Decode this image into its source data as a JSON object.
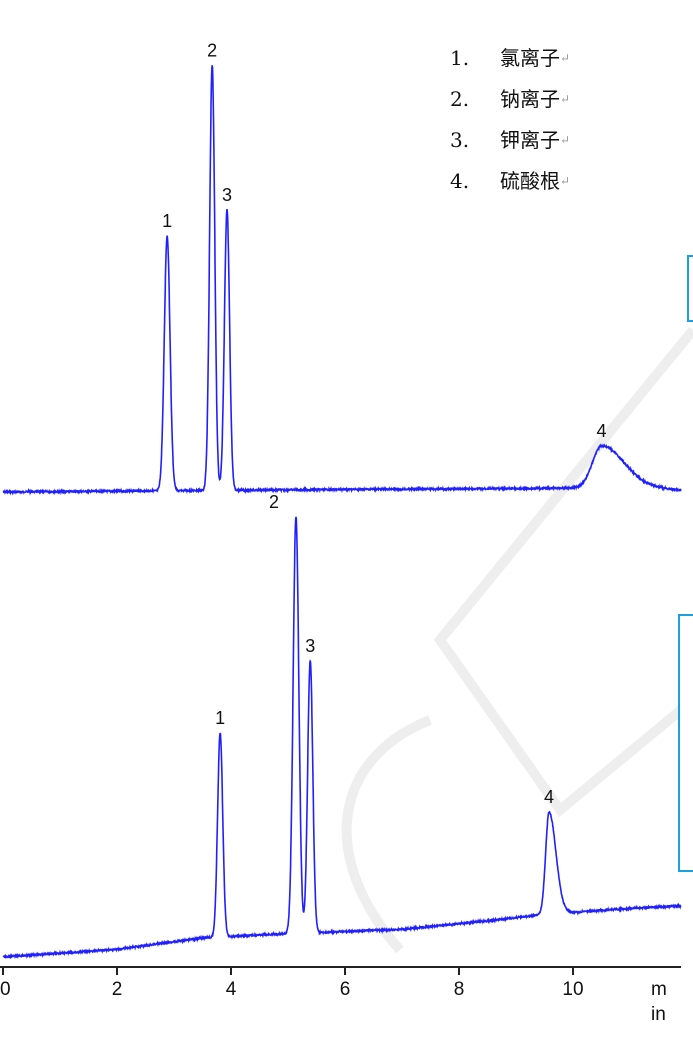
{
  "chart_data": [
    {
      "type": "line",
      "title": "",
      "xlabel": "min",
      "ylabel": "",
      "xlim": [
        0,
        11.8
      ],
      "x_ticks": [
        "0",
        "2",
        "4",
        "6",
        "8",
        "10"
      ],
      "grid": false,
      "color": "#2020ff",
      "baseline": [
        [
          0,
          0
        ],
        [
          3,
          0.3
        ],
        [
          6,
          0.6
        ],
        [
          9,
          0.8
        ],
        [
          10.2,
          1
        ],
        [
          11,
          2
        ],
        [
          11.8,
          0.5
        ]
      ],
      "peaks": [
        {
          "label": "1",
          "rt": 2.88,
          "height": 60,
          "width": 0.05,
          "tail": 1
        },
        {
          "label": "2",
          "rt": 3.67,
          "height": 100,
          "width": 0.045,
          "tail": 1
        },
        {
          "label": "3",
          "rt": 3.93,
          "height": 66,
          "width": 0.045,
          "tail": 1
        },
        {
          "label": "4",
          "rt": 10.5,
          "height": 9.5,
          "width": 0.16,
          "tail": 2.2
        }
      ]
    },
    {
      "type": "line",
      "title": "",
      "xlabel": "min",
      "ylabel": "",
      "xlim": [
        0,
        11.8
      ],
      "x_ticks": [
        "0",
        "2",
        "4",
        "6",
        "8",
        "10"
      ],
      "grid": false,
      "color": "#2020ff",
      "baseline": [
        [
          0,
          0
        ],
        [
          2,
          1.8
        ],
        [
          3.5,
          4.5
        ],
        [
          5,
          5.5
        ],
        [
          7,
          6.5
        ],
        [
          8.5,
          8.5
        ],
        [
          9.5,
          10
        ],
        [
          10.5,
          11
        ],
        [
          11.8,
          12
        ]
      ],
      "peaks": [
        {
          "label": "1",
          "rt": 3.81,
          "height": 48,
          "width": 0.045,
          "tail": 1
        },
        {
          "label": "2",
          "rt": 5.14,
          "height": 98,
          "width": 0.05,
          "tail": 1
        },
        {
          "label": "3",
          "rt": 5.39,
          "height": 64,
          "width": 0.045,
          "tail": 1
        },
        {
          "label": "4",
          "rt": 9.58,
          "height": 24,
          "width": 0.06,
          "tail": 2
        }
      ]
    }
  ],
  "axis": {
    "ticks": [
      "0",
      "2",
      "4",
      "6",
      "8",
      "10"
    ],
    "unit_line1": "m",
    "unit_line2": "in"
  },
  "legend": [
    {
      "num": "1.",
      "name": "氯离子"
    },
    {
      "num": "2.",
      "name": "钠离子"
    },
    {
      "num": "3.",
      "name": "钾离子"
    },
    {
      "num": "4.",
      "name": "硫酸根"
    }
  ],
  "legend_mark": "↵"
}
